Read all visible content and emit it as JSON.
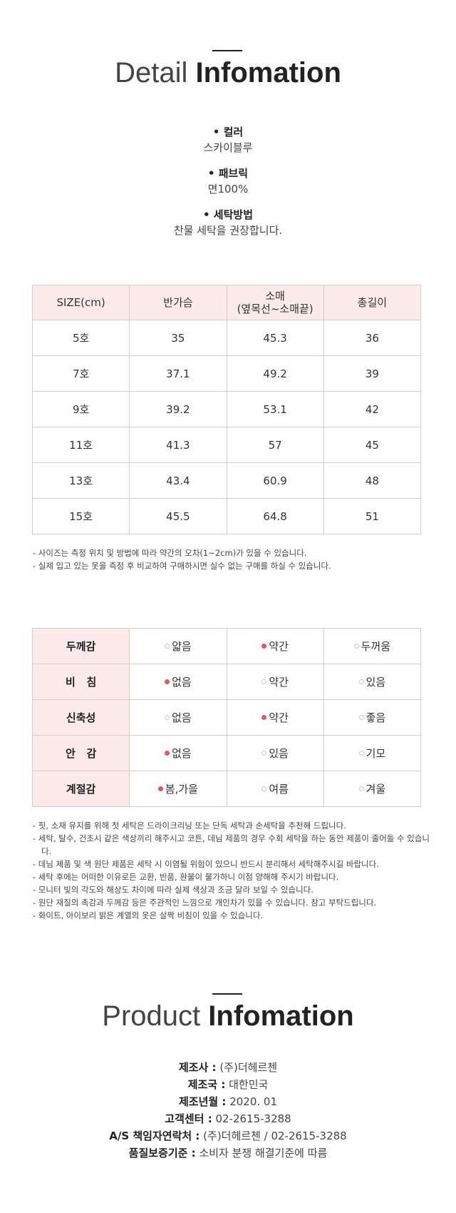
{
  "detail": {
    "title_light": "Detail",
    "title_bold": "Infomation",
    "specs": [
      {
        "label": "• 컬러",
        "value": "스카이블루"
      },
      {
        "label": "• 패브릭",
        "value": "면100%"
      },
      {
        "label": "• 세탁방법",
        "value": "찬물 세탁을 권장합니다."
      }
    ]
  },
  "size_table": {
    "headers": [
      "SIZE(cm)",
      "반가슴",
      "소매\n(옆목선~소매끝)",
      "총길이"
    ],
    "rows": [
      [
        "5호",
        "35",
        "45.3",
        "36"
      ],
      [
        "7호",
        "37.1",
        "49.2",
        "39"
      ],
      [
        "9호",
        "39.2",
        "53.1",
        "42"
      ],
      [
        "11호",
        "41.3",
        "57",
        "45"
      ],
      [
        "13호",
        "43.4",
        "60.9",
        "48"
      ],
      [
        "15호",
        "45.5",
        "64.8",
        "51"
      ]
    ]
  },
  "size_notes": [
    "- 사이즈는 측정 위치 및 방법에 따라 약간의 오차(1~2cm)가 있을 수 있습니다.",
    "- 실제 입고 있는 옷을 측정 후 비교하여 구매하시면 실수 없는 구매를 하실 수 있습니다."
  ],
  "attributes": [
    {
      "name": "두께감",
      "options": [
        "얇음",
        "약간",
        "두꺼움"
      ],
      "selected": 1
    },
    {
      "name": "비   침",
      "options": [
        "없음",
        "약간",
        "있음"
      ],
      "selected": 0
    },
    {
      "name": "신축성",
      "options": [
        "없음",
        "약간",
        "좋음"
      ],
      "selected": 1
    },
    {
      "name": "안   감",
      "options": [
        "없음",
        "있음",
        "기모"
      ],
      "selected": 0
    },
    {
      "name": "계절감",
      "options": [
        "봄,가을",
        "여름",
        "겨울"
      ],
      "selected": 0
    }
  ],
  "care_notes": [
    "- 핏, 소재 유지를 위해 첫 세탁은 드라이크리닝 또는 단독 세탁과 손세탁을 추천해 드립니다.",
    "- 세탁, 탈수, 건조시 같은 색상끼리 해주시고 코튼, 데님 제품의 경우 수회 세탁을 하는 동안 제품이 줄어들 수 있습니다.",
    "- 데님 제품 및 색 원단 제품은 세탁 시 이염될 위험이 있으니 반드시 분리해서 세탁해주시길 바랍니다.",
    "- 세탁 후에는 어떠한 이유로든 교환, 반품, 환불이 불가하니 이점 양해해 주시기 바랍니다.",
    "- 모니터 빛의 각도와 해상도 차이에 따라 실제 색상과 조금 달라 보일 수 있습니다.",
    "- 원단 재질의 촉감과 두께감 등은 주관적인 느낌으로 개인차가 있을 수 있습니다. 참고 부탁드립니다.",
    "- 화이트, 아이보리 밝은 계열의 옷은 살짝 비침이 있을 수 있습니다."
  ],
  "product": {
    "title_light": "Product",
    "title_bold": "Infomation",
    "rows": [
      {
        "key": "제조사 :",
        "value": " (주)더헤르첸"
      },
      {
        "key": "제조국 :",
        "value": " 대한민국"
      },
      {
        "key": "제조년월 :",
        "value": " 2020. 01"
      },
      {
        "key": "고객센터 :",
        "value": " 02-2615-3288"
      },
      {
        "key": "A/S 책임자연락처 :",
        "value": " (주)더헤르첸 / 02-2615-3288"
      },
      {
        "key": "품질보증기준 :",
        "value": " 소비자 분쟁 해결기준에 따름"
      }
    ]
  },
  "colors": {
    "accent_dot": "#e9535a",
    "header_bg": "#fdeaea"
  }
}
